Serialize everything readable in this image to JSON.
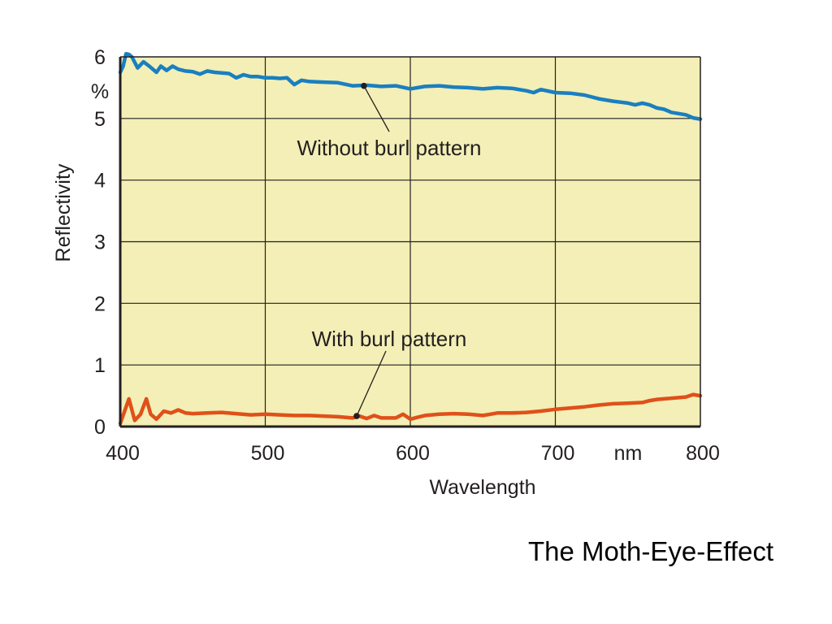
{
  "caption": "The Moth-Eye-Effect",
  "chart_data": {
    "type": "line",
    "xlabel": "Wavelength",
    "x_unit": "nm",
    "ylabel": "Reflectivity",
    "y_unit": "%",
    "xlim": [
      400,
      800
    ],
    "ylim": [
      0,
      6
    ],
    "x_ticks": [
      400,
      500,
      600,
      700,
      800
    ],
    "y_ticks": [
      0,
      1,
      2,
      3,
      4,
      5,
      6
    ],
    "grid": true,
    "colors": {
      "plot_bg": "#f3efb6",
      "grid": "#231f20",
      "without": "#1a7fc0",
      "with": "#e0501a"
    },
    "series": [
      {
        "name": "Without burl pattern",
        "x": [
          400,
          402,
          404,
          406,
          408,
          412,
          416,
          420,
          425,
          428,
          432,
          436,
          440,
          445,
          450,
          455,
          460,
          465,
          470,
          475,
          480,
          485,
          490,
          495,
          500,
          505,
          510,
          515,
          520,
          525,
          530,
          540,
          550,
          560,
          570,
          580,
          590,
          600,
          610,
          620,
          630,
          640,
          650,
          660,
          670,
          680,
          685,
          690,
          700,
          710,
          720,
          730,
          740,
          750,
          755,
          760,
          765,
          770,
          775,
          780,
          785,
          790,
          795,
          800
        ],
        "y": [
          5.75,
          5.85,
          6.05,
          6.04,
          6.0,
          5.82,
          5.92,
          5.85,
          5.75,
          5.85,
          5.78,
          5.85,
          5.8,
          5.77,
          5.76,
          5.72,
          5.77,
          5.75,
          5.74,
          5.73,
          5.66,
          5.71,
          5.68,
          5.68,
          5.66,
          5.66,
          5.65,
          5.66,
          5.55,
          5.62,
          5.6,
          5.59,
          5.58,
          5.53,
          5.54,
          5.52,
          5.53,
          5.48,
          5.52,
          5.53,
          5.51,
          5.5,
          5.48,
          5.5,
          5.49,
          5.45,
          5.42,
          5.47,
          5.42,
          5.41,
          5.38,
          5.32,
          5.28,
          5.25,
          5.22,
          5.25,
          5.22,
          5.17,
          5.15,
          5.1,
          5.08,
          5.06,
          5.01,
          4.99
        ]
      },
      {
        "name": "With burl pattern",
        "x": [
          400,
          403,
          406,
          410,
          414,
          418,
          421,
          425,
          430,
          435,
          440,
          445,
          450,
          460,
          470,
          480,
          490,
          500,
          510,
          520,
          530,
          540,
          550,
          560,
          565,
          570,
          575,
          580,
          590,
          595,
          600,
          605,
          610,
          620,
          630,
          640,
          650,
          660,
          670,
          680,
          690,
          700,
          710,
          720,
          730,
          740,
          750,
          760,
          765,
          770,
          780,
          790,
          795,
          800
        ],
        "y": [
          0.05,
          0.25,
          0.45,
          0.1,
          0.2,
          0.45,
          0.2,
          0.12,
          0.25,
          0.22,
          0.27,
          0.22,
          0.21,
          0.22,
          0.23,
          0.21,
          0.19,
          0.2,
          0.19,
          0.18,
          0.18,
          0.17,
          0.16,
          0.14,
          0.17,
          0.13,
          0.18,
          0.14,
          0.14,
          0.2,
          0.12,
          0.15,
          0.18,
          0.2,
          0.21,
          0.2,
          0.18,
          0.22,
          0.22,
          0.23,
          0.25,
          0.28,
          0.3,
          0.32,
          0.35,
          0.37,
          0.38,
          0.39,
          0.42,
          0.44,
          0.46,
          0.48,
          0.52,
          0.5
        ]
      }
    ],
    "annotations": [
      {
        "text": "Without burl pattern",
        "series": 0,
        "x": 568,
        "y": 5.53
      },
      {
        "text": "With burl pattern",
        "series": 1,
        "x": 563,
        "y": 0.17
      }
    ]
  }
}
